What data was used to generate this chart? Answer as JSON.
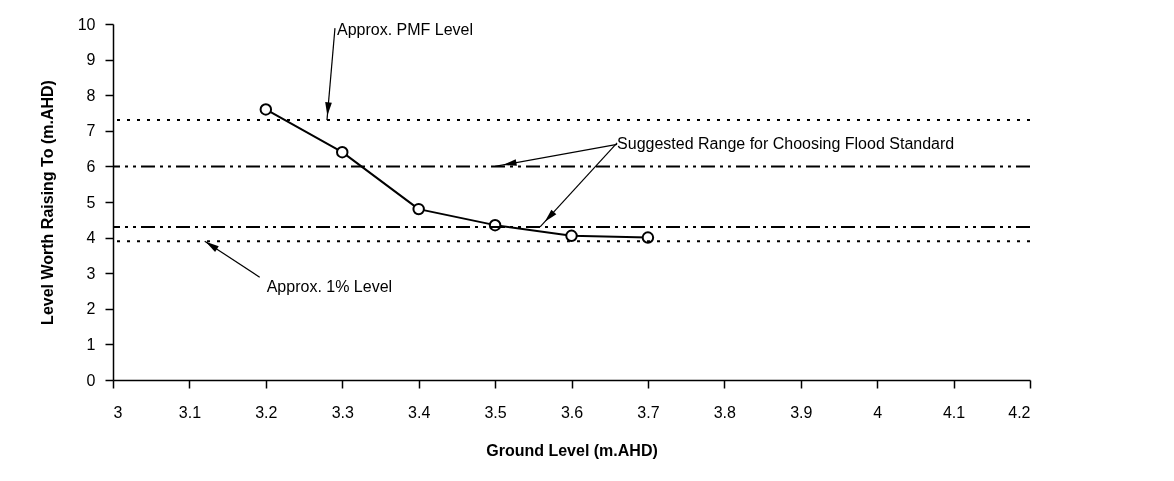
{
  "chart_data": {
    "type": "line",
    "xlabel": "Ground Level (m.AHD)",
    "ylabel": "Level Worth Raising To (m.AHD)",
    "x": [
      3.2,
      3.3,
      3.4,
      3.5,
      3.6,
      3.7
    ],
    "series": [
      {
        "color": "#000000",
        "values": [
          7.6,
          6.4,
          4.8,
          4.35,
          4.05,
          4.0
        ]
      }
    ],
    "marker": "circle",
    "line_style": "solid",
    "grid": false,
    "xlim": [
      3,
      4.2
    ],
    "xticks": [
      3,
      3.1,
      3.2,
      3.3,
      3.4,
      3.5,
      3.6,
      3.7,
      3.8,
      3.9,
      4,
      4.1,
      4.2
    ],
    "ylim": [
      0,
      10
    ],
    "yticks": [
      0,
      1,
      2,
      3,
      4,
      5,
      6,
      7,
      8,
      9,
      10
    ],
    "ref_lines": [
      {
        "axis": "y",
        "value": 7.3,
        "label": null,
        "line_style": "dotted",
        "color": "#000000"
      },
      {
        "axis": "y",
        "value": 6.0,
        "label": null,
        "line_style": "dashed",
        "color": "#000000"
      },
      {
        "axis": "y",
        "value": 4.3,
        "label": null,
        "line_style": "dashed",
        "color": "#000000"
      },
      {
        "axis": "y",
        "value": 3.9,
        "label": null,
        "line_style": "dotted",
        "color": "#000000"
      }
    ],
    "annotations": [
      {
        "text": "Approx. PMF Level",
        "x": 3.28,
        "y": 7.3
      },
      {
        "text": "Approx. 1% Level",
        "x": 3.12,
        "y": 3.9
      },
      {
        "text": "Suggested Range for Choosing Flood Standard",
        "x": 3.5,
        "y": 6.0
      }
    ]
  }
}
